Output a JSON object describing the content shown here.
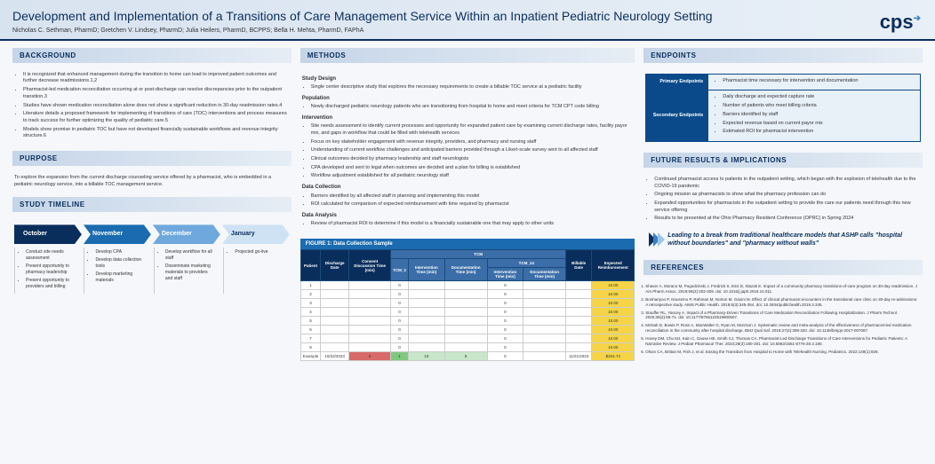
{
  "header": {
    "title": "Development and Implementation of a Transitions of Care Management Service Within an Inpatient Pediatric Neurology Setting",
    "authors": "Nicholas C. Sethman, PharmD; Gretchen V. Lindsey, PharmD; Julia Heilers, PharmD, BCPPS; Bella H. Mehta, PharmD, FAPhA",
    "logo": "cps"
  },
  "background": {
    "title": "BACKGROUND",
    "items": [
      "It is recognized that enhanced management during the transition to home can lead to improved patient outcomes and further decrease readmissions.1,2",
      "Pharmacist-led medication reconciliation occurring at or post-discharge can resolve discrepancies prior to the outpatient transition.3",
      "Studies have shown medication reconciliation alone does not show a significant reduction in 30-day readmission rates.4",
      "Literature details a proposed framework for implementing of transitions of care (TOC) interventions and process measures to track success for further optimizing the quality of pediatric care.5",
      "Models show promise in pediatric TOC but have not developed financially sustainable workflows and revenue integrity structure.6"
    ]
  },
  "purpose": {
    "title": "PURPOSE",
    "text": "To explore the expansion from the current discharge counseling service offered by a pharmacist, who is embedded in a pediatric neurology service, into a billable TOC management service."
  },
  "timeline": {
    "title": "STUDY TIMELINE",
    "months": [
      {
        "label": "October",
        "color": "#0a2e5c",
        "items": [
          "Conduct site needs assessment",
          "Present opportunity to pharmacy leadership",
          "Present opportunity to providers and billing"
        ]
      },
      {
        "label": "November",
        "color": "#1a6bb0",
        "items": [
          "Develop CPA",
          "Develop data collection tools",
          "Develop marketing materials"
        ]
      },
      {
        "label": "December",
        "color": "#6fa8dc",
        "items": [
          "Develop workflow for all staff",
          "Disseminate marketing materials to providers and staff"
        ]
      },
      {
        "label": "January",
        "color": "#cfe2f3",
        "textcolor": "#0a2e5c",
        "items": [
          "Projected go-live"
        ]
      }
    ]
  },
  "methods": {
    "title": "METHODS",
    "sections": [
      {
        "head": "Study Design",
        "items": [
          "Single center descriptive study that explores the necessary requirements to create a billable TOC service at a pediatric facility"
        ]
      },
      {
        "head": "Population",
        "items": [
          "Newly discharged pediatric neurology patients who are transitioning from hospital to home and meet criteria for TCM CPT code billing"
        ]
      },
      {
        "head": "Intervention",
        "items": [
          "Site needs assessment to identify current processes and opportunity for expanded patient care by examining current discharge rates, facility payor mix, and gaps in workflow that could be filled with telehealth services",
          "Focus on key stakeholder engagement with revenue integrity, providers, and pharmacy and nursing staff",
          "Understanding of current workflow challenges and anticipated barriers provided through a Likert-scale survey sent to all affected staff",
          "Clinical outcomes decided by pharmacy leadership and staff neurologists",
          "CPA developed and sent to legal when outcomes are decided and a plan for billing is established",
          "Workflow adjustment established for all pediatric neurology staff"
        ]
      },
      {
        "head": "Data Collection",
        "items": [
          "Barriers identified by all affected staff in planning and implementing this model",
          "ROI calculated for comparison of expected reimbursement with time required by pharmacist"
        ]
      },
      {
        "head": "Data Analysis",
        "items": [
          "Review of pharmacist ROI to determine if this model is a financially sustainable one that may apply to other units"
        ]
      }
    ]
  },
  "figure": {
    "title": "FIGURE 1: Data Collection Sample",
    "headers": [
      "Patient",
      "Discharge Date",
      "Consent Discussion Time (min)",
      "Intervention Time (min)",
      "Documentation Time (min)",
      "TCM_14",
      "Intervention Time (min)",
      "Documentation Time (min)",
      "Billable Date",
      "Expected Reimbursement"
    ],
    "group_label": "TCM",
    "sub1": "TCM_2",
    "rows": [
      [
        "1",
        "",
        "",
        "0",
        "",
        "",
        "0",
        "",
        "",
        "10.00"
      ],
      [
        "2",
        "",
        "",
        "0",
        "",
        "",
        "0",
        "",
        "",
        "10.00"
      ],
      [
        "3",
        "",
        "",
        "0",
        "",
        "",
        "0",
        "",
        "",
        "10.00"
      ],
      [
        "4",
        "",
        "",
        "0",
        "",
        "",
        "0",
        "",
        "",
        "10.00"
      ],
      [
        "5",
        "",
        "",
        "0",
        "",
        "",
        "0",
        "",
        "",
        "10.00"
      ],
      [
        "6",
        "",
        "",
        "0",
        "",
        "",
        "0",
        "",
        "",
        "10.00"
      ],
      [
        "7",
        "",
        "",
        "0",
        "",
        "",
        "0",
        "",
        "",
        "10.00"
      ],
      [
        "8",
        "",
        "",
        "0",
        "",
        "",
        "0",
        "",
        "",
        "10.00"
      ]
    ],
    "example": [
      "Example",
      "10/22/2023",
      "5",
      "1",
      "10",
      "5",
      "0",
      "",
      "11/21/2023",
      "$204.74"
    ]
  },
  "endpoints": {
    "title": "ENDPOINTS",
    "primary_label": "Primary Endpoints",
    "primary": [
      "Pharmacist time necessary for intervention and documentation"
    ],
    "secondary_label": "Secondary Endpoints",
    "secondary": [
      "Daily discharge and expected capture rate",
      "Number of patients who meet billing criteria",
      "Barriers identified by staff",
      "Expected revenue based on current payor mix",
      "Estimated ROI for pharmacist intervention"
    ]
  },
  "future": {
    "title": "FUTURE RESULTS & IMPLICATIONS",
    "items": [
      "Continued pharmacist access to patients in the outpatient setting, which began with the explosion of telehealth due to the COVID-19 pandemic",
      "Ongoing mission as pharmacists to show what the pharmacy profession can do",
      "Expanded opportunities for pharmacists in the outpatient setting to provide the care our patients need through this new service offering",
      "Results to be presented at the Ohio Pharmacy Resident Conference (OPRC) in Spring 2024"
    ],
    "quote": "Leading to a break from traditional healthcare models that ASHP calls \"hospital without boundaries\" and \"pharmacy without walls\""
  },
  "references": {
    "title": "REFERENCES",
    "items": [
      "Shaver A, Morano M, Pogodzinski J, Fredrick S, Essi D, Slazak E. Impact of a community pharmacy transitions-of-care program on 30-day readmission. J Am Pharm Assoc. 2019;59(2):202-209. doi: 10.1016/j.japh.2018.10.011.",
      "Bonhariyoo P, Noussmo P, Rahman M, Norton M, Gavini M. Effect of clinical pharmacist encounters in the transitional care clinic on 30-day re-admissions: A retrospective study. AIMS Public Health. 2019;6(3):345-354. doi: 10.3934/publichealth.2019.3.345.",
      "Stauffer RL, Yancey A. Impact of a Pharmacy-Driven Transitions of Care Medication Reconciliation Following Hospitalization. J Pharm Technol. 2020;36(2):68-71. doi: 10.1177/8755122519900507.",
      "McNab D, Bowie P, Ross A, MacWalter G, Ryan M, Morrison J. Systematic review and meta-analysis of the effectiveness of pharmacist-led medication reconciliation in the community after hospital discharge. BMJ Qual Saf. 2018;27(4):308-320. doi: 10.1136/bmjqs-2017-007087.",
      "Hovey DM, Chu MJ, Kain C, Gause HE, Smith CJ, Thomas CA. Pharmacist-Led Discharge Transitions of Care Interventions for Pediatric Patients: A Narrative Review. J Pediatr Pharmacol Ther. 2023;28(3):180-191. doi: 10.5863/1551-6776-28.3.180.",
      "Olson CA, Brittan M, Fish J, et al. Easing the Transition from Hospital to Home with Telehealth Nursing. Pediatrics. 2022;149(1):929."
    ]
  }
}
